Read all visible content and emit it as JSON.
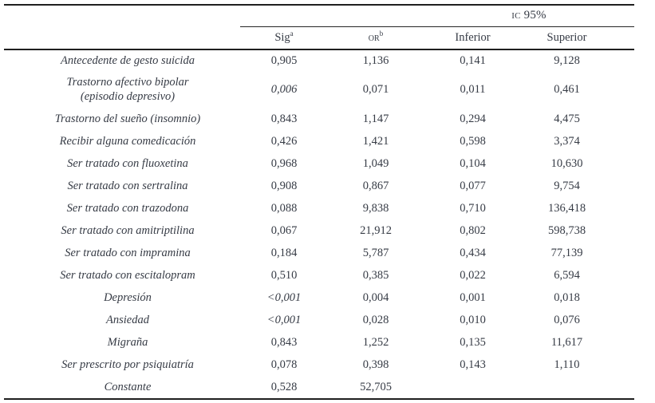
{
  "colors": {
    "text": "#363b45",
    "rule": "#1f1f1f",
    "background": "#ffffff"
  },
  "table": {
    "group_header": "IC 95%",
    "columns": {
      "sig": "Sig",
      "sig_sup": "a",
      "or": "OR",
      "or_sup": "b",
      "inferior": "Inferior",
      "superior": "Superior"
    },
    "rows": [
      {
        "label": "Antecedente de gesto suicida",
        "sig": "0,905",
        "or": "1,136",
        "inferior": "0,141",
        "superior": "9,128"
      },
      {
        "label": "Trastorno afectivo bipolar",
        "label2": "(episodio depresivo)",
        "sig": "0,006",
        "sig_italic": true,
        "or": "0,071",
        "inferior": "0,011",
        "superior": "0,461"
      },
      {
        "label": "Trastorno del sueño (insomnio)",
        "sig": "0,843",
        "or": "1,147",
        "inferior": "0,294",
        "superior": "4,475"
      },
      {
        "label": "Recibir alguna comedicación",
        "sig": "0,426",
        "or": "1,421",
        "inferior": "0,598",
        "superior": "3,374"
      },
      {
        "label": "Ser tratado con fluoxetina",
        "sig": "0,968",
        "or": "1,049",
        "inferior": "0,104",
        "superior": "10,630"
      },
      {
        "label": "Ser tratado con sertralina",
        "sig": "0,908",
        "or": "0,867",
        "inferior": "0,077",
        "superior": "9,754"
      },
      {
        "label": "Ser tratado con trazodona",
        "sig": "0,088",
        "or": "9,838",
        "inferior": "0,710",
        "superior": "136,418"
      },
      {
        "label": "Ser tratado con amitriptilina",
        "sig": "0,067",
        "or": "21,912",
        "inferior": "0,802",
        "superior": "598,738"
      },
      {
        "label": "Ser tratado con impramina",
        "sig": "0,184",
        "or": "5,787",
        "inferior": "0,434",
        "superior": "77,139"
      },
      {
        "label": "Ser tratado con escitalopram",
        "sig": "0,510",
        "or": "0,385",
        "inferior": "0,022",
        "superior": "6,594"
      },
      {
        "label": "Depresión",
        "sig": "<0,001",
        "sig_italic": true,
        "or": "0,004",
        "inferior": "0,001",
        "superior": "0,018"
      },
      {
        "label": "Ansiedad",
        "sig": "<0,001",
        "sig_italic": true,
        "or": "0,028",
        "inferior": "0,010",
        "superior": "0,076"
      },
      {
        "label": "Migraña",
        "sig": "0,843",
        "or": "1,252",
        "inferior": "0,135",
        "superior": "11,617"
      },
      {
        "label": "Ser prescrito por psiquiatría",
        "sig": "0,078",
        "or": "0,398",
        "inferior": "0,143",
        "superior": "1,110"
      },
      {
        "label": "Constante",
        "sig": "0,528",
        "or": "52,705",
        "inferior": "",
        "superior": ""
      }
    ]
  }
}
